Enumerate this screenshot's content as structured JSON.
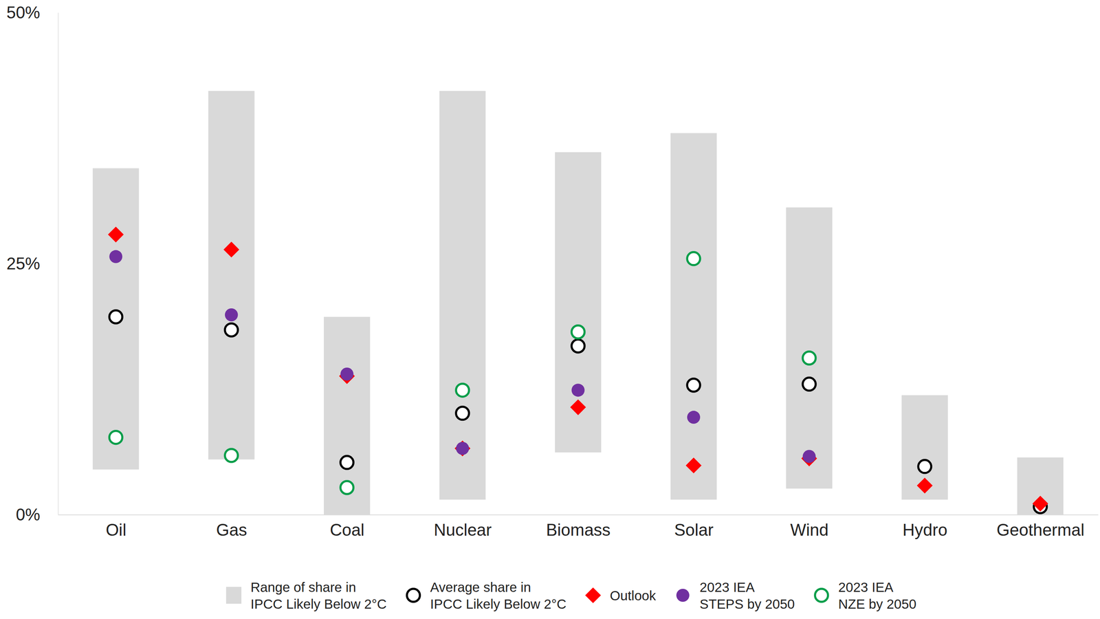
{
  "chart_data": {
    "type": "range_dot",
    "categories": [
      "Oil",
      "Gas",
      "Coal",
      "Nuclear",
      "Biomass",
      "Solar",
      "Wind",
      "Hydro",
      "Geothermal"
    ],
    "ylim": [
      0,
      50
    ],
    "yticks": [
      {
        "value": 0,
        "label": "0%"
      },
      {
        "value": 25,
        "label": "25%"
      },
      {
        "value": 50,
        "label": "50%"
      }
    ],
    "grid": false,
    "legend": "bottom",
    "series": [
      {
        "name": "Range of share in IPCC Likely Below 2°C",
        "type": "range",
        "color": "#d9d9d9",
        "low": [
          4.5,
          5.5,
          0,
          1.5,
          6.2,
          1.5,
          2.6,
          1.5,
          0
        ],
        "high": [
          34.5,
          42.2,
          19.7,
          42.2,
          36.1,
          38.0,
          30.6,
          11.9,
          5.7
        ]
      },
      {
        "name": "Average share in IPCC Likely Below 2°C",
        "type": "scatter",
        "marker": "open_circle",
        "color": "#000000",
        "values": [
          19.7,
          18.4,
          5.2,
          10.1,
          16.8,
          12.9,
          13.0,
          4.8,
          0.8
        ]
      },
      {
        "name": "Outlook",
        "type": "scatter",
        "marker": "diamond",
        "color": "#ff0000",
        "values": [
          27.9,
          26.4,
          13.8,
          6.6,
          10.7,
          4.9,
          5.6,
          2.9,
          1.1
        ]
      },
      {
        "name": "2023 IEA STEPS by 2050",
        "type": "scatter",
        "marker": "circle",
        "color": "#7030a0",
        "values": [
          25.7,
          19.9,
          14.0,
          6.6,
          12.4,
          9.7,
          5.8,
          null,
          null
        ]
      },
      {
        "name": "2023 IEA NZE by 2050",
        "type": "scatter",
        "marker": "open_circle",
        "color": "#0a9e4a",
        "values": [
          7.7,
          5.9,
          2.7,
          12.4,
          18.2,
          25.5,
          15.6,
          null,
          null
        ]
      }
    ]
  }
}
